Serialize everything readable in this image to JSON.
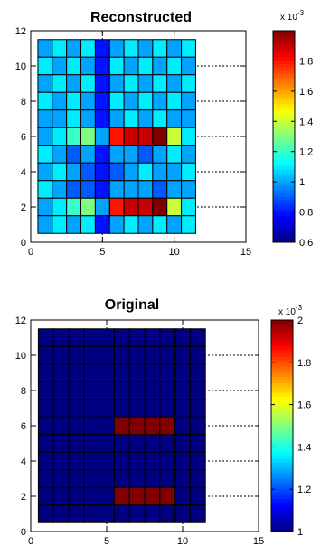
{
  "chart_data": [
    {
      "type": "heatmap",
      "title": "Reconstructed",
      "xlim": [
        0,
        15
      ],
      "ylim": [
        0,
        12
      ],
      "xticks": [
        0,
        5,
        10,
        15
      ],
      "yticks": [
        0,
        2,
        4,
        6,
        8,
        10,
        12
      ],
      "grid": true,
      "x_cells": [
        1,
        2,
        3,
        4,
        5,
        6,
        7,
        8,
        9,
        10,
        11
      ],
      "y_cells": [
        1,
        2,
        3,
        4,
        5,
        6,
        7,
        8,
        9,
        10,
        11
      ],
      "values": [
        [
          0.001,
          0.0011,
          0.001,
          0.0011,
          0.0008,
          0.001,
          0.0011,
          0.001,
          0.0011,
          0.001,
          0.0011
        ],
        [
          0.0011,
          0.001,
          0.0011,
          0.001,
          0.0008,
          0.0011,
          0.001,
          0.0011,
          0.001,
          0.0011,
          0.001
        ],
        [
          0.001,
          0.0011,
          0.001,
          0.0011,
          0.0008,
          0.001,
          0.0011,
          0.001,
          0.0011,
          0.001,
          0.0011
        ],
        [
          0.0011,
          0.001,
          0.0011,
          0.001,
          0.0008,
          0.0011,
          0.001,
          0.0011,
          0.001,
          0.0011,
          0.001
        ],
        [
          0.001,
          0.001,
          0.0011,
          0.001,
          0.0008,
          0.001,
          0.0011,
          0.001,
          0.0011,
          0.001,
          0.001
        ],
        [
          0.001,
          0.0011,
          0.0012,
          0.0013,
          0.001,
          0.0018,
          0.0019,
          0.0019,
          0.002,
          0.0014,
          0.0011
        ],
        [
          0.0011,
          0.001,
          0.0009,
          0.001,
          0.0008,
          0.001,
          0.001,
          0.0009,
          0.001,
          0.0011,
          0.001
        ],
        [
          0.001,
          0.0011,
          0.001,
          0.0009,
          0.0008,
          0.0009,
          0.001,
          0.0011,
          0.001,
          0.001,
          0.0011
        ],
        [
          0.0011,
          0.001,
          0.0009,
          0.0009,
          0.0008,
          0.001,
          0.001,
          0.001,
          0.0009,
          0.001,
          0.001
        ],
        [
          0.001,
          0.0011,
          0.0012,
          0.0013,
          0.001,
          0.0018,
          0.0019,
          0.0019,
          0.002,
          0.0014,
          0.0011
        ],
        [
          0.001,
          0.0011,
          0.001,
          0.0011,
          0.0008,
          0.001,
          0.0011,
          0.001,
          0.0011,
          0.001,
          0.0011
        ]
      ],
      "colorbar": {
        "range": [
          0.0006,
          0.002
        ],
        "ticks": [
          0.0006,
          0.0008,
          0.001,
          0.0012,
          0.0014,
          0.0016,
          0.0018
        ],
        "tick_labels": [
          "0.6",
          "0.8",
          "1",
          "1.2",
          "1.4",
          "1.6",
          "1.8"
        ],
        "multiplier_label": "x 10",
        "multiplier_exponent": "-3"
      }
    },
    {
      "type": "heatmap",
      "title": "Original",
      "xlim": [
        0,
        15
      ],
      "ylim": [
        0,
        12
      ],
      "xticks": [
        0,
        5,
        10,
        15
      ],
      "yticks": [
        0,
        2,
        4,
        6,
        8,
        10,
        12
      ],
      "grid": true,
      "x_cells": [
        1,
        2,
        3,
        4,
        5,
        6,
        7,
        8,
        9,
        10,
        11
      ],
      "y_cells": [
        1,
        2,
        3,
        4,
        5,
        6,
        7,
        8,
        9,
        10,
        11
      ],
      "values": [
        [
          0.001,
          0.001,
          0.001,
          0.001,
          0.001,
          0.001,
          0.001,
          0.001,
          0.001,
          0.001,
          0.001
        ],
        [
          0.001,
          0.001,
          0.001,
          0.001,
          0.001,
          0.001,
          0.001,
          0.001,
          0.001,
          0.001,
          0.001
        ],
        [
          0.001,
          0.001,
          0.001,
          0.001,
          0.001,
          0.001,
          0.001,
          0.001,
          0.001,
          0.001,
          0.001
        ],
        [
          0.001,
          0.001,
          0.001,
          0.001,
          0.001,
          0.001,
          0.001,
          0.001,
          0.001,
          0.001,
          0.001
        ],
        [
          0.001,
          0.001,
          0.001,
          0.001,
          0.001,
          0.001,
          0.001,
          0.001,
          0.001,
          0.001,
          0.001
        ],
        [
          0.001,
          0.001,
          0.001,
          0.001,
          0.001,
          0.002,
          0.002,
          0.002,
          0.002,
          0.001,
          0.001
        ],
        [
          0.001,
          0.001,
          0.001,
          0.001,
          0.001,
          0.001,
          0.001,
          0.001,
          0.001,
          0.001,
          0.001
        ],
        [
          0.001,
          0.001,
          0.001,
          0.001,
          0.001,
          0.001,
          0.001,
          0.001,
          0.001,
          0.001,
          0.001
        ],
        [
          0.001,
          0.001,
          0.001,
          0.001,
          0.001,
          0.001,
          0.001,
          0.001,
          0.001,
          0.001,
          0.001
        ],
        [
          0.001,
          0.001,
          0.001,
          0.001,
          0.001,
          0.002,
          0.002,
          0.002,
          0.002,
          0.001,
          0.001
        ],
        [
          0.001,
          0.001,
          0.001,
          0.001,
          0.001,
          0.001,
          0.001,
          0.001,
          0.001,
          0.001,
          0.001
        ]
      ],
      "colorbar": {
        "range": [
          0.001,
          0.002
        ],
        "ticks": [
          0.001,
          0.0012,
          0.0014,
          0.0016,
          0.0018,
          0.002
        ],
        "tick_labels": [
          "1",
          "1.2",
          "1.4",
          "1.6",
          "1.8",
          "2"
        ],
        "multiplier_label": "x 10",
        "multiplier_exponent": "-3"
      }
    }
  ]
}
